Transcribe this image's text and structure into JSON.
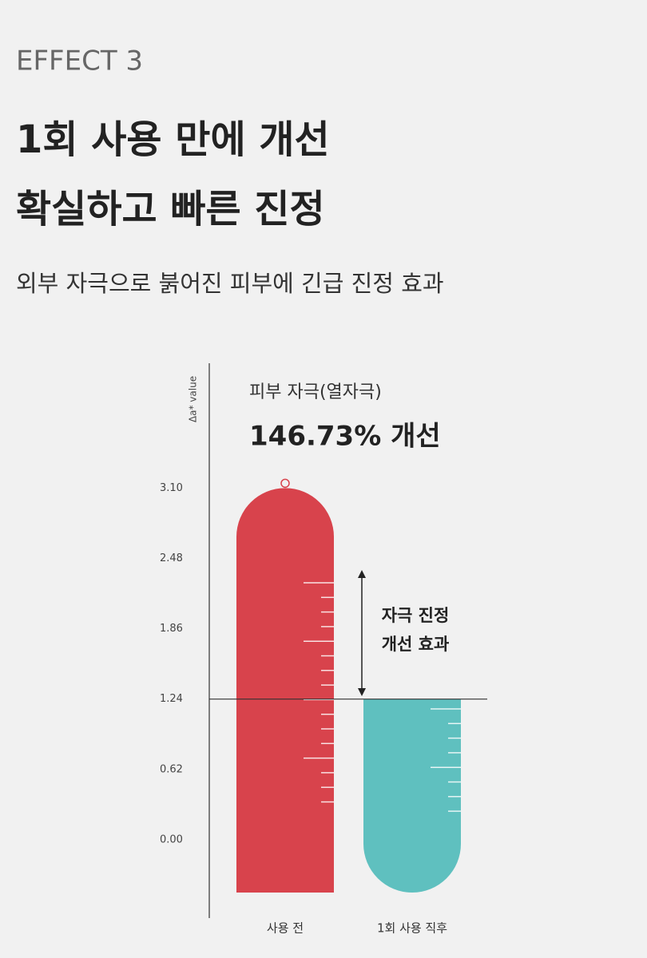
{
  "header": {
    "eyebrow": "EFFECT 3",
    "title": [
      "1회 사용 만에 개선",
      "확실하고 빠른 진정"
    ],
    "subtitle": "외부 자극으로 붉어진 피부에 긴급 진정 효과"
  },
  "chart_data": {
    "type": "bar",
    "y_label": "Δa* value",
    "annotation": "피부 자극(열자극)",
    "highlight": "146.73% 개선",
    "effect_label": [
      "자극 진정",
      "개선 효과"
    ],
    "categories": [
      "사용 전",
      "1회 사용 직후"
    ],
    "values": [
      3.1,
      1.24
    ],
    "colors": [
      "#d8434c",
      "#5fc0bf"
    ],
    "ylim": [
      -0.69,
      4.2
    ],
    "yticks": [
      {
        "value": 0,
        "label": "0.00"
      },
      0.62,
      1.24,
      1.86,
      2.48,
      {
        "value": 3.1,
        "label": "3.10"
      }
    ]
  }
}
